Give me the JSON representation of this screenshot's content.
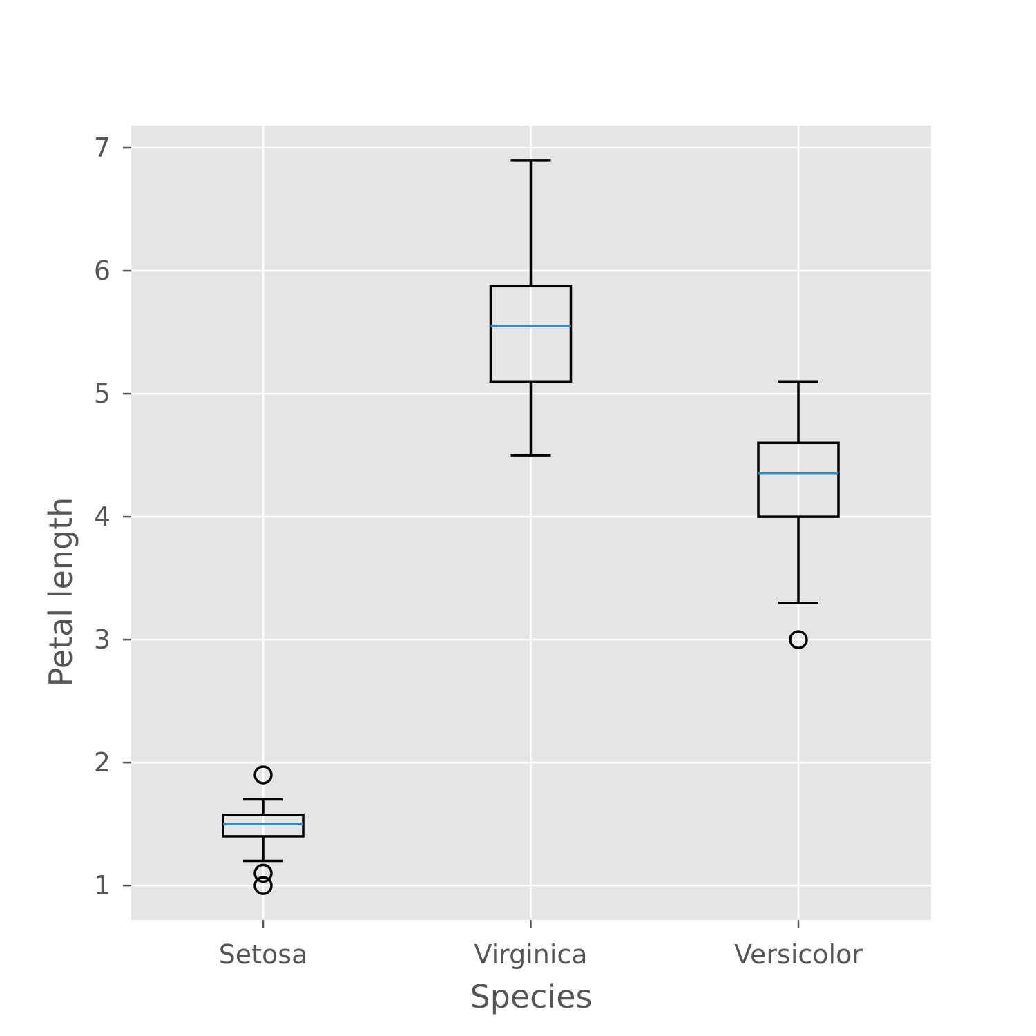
{
  "chart_data": {
    "type": "box",
    "title": "",
    "xlabel": "Species",
    "ylabel": "Petal length",
    "ylim": [
      0.72,
      7.18
    ],
    "yticks": [
      1,
      2,
      3,
      4,
      5,
      6,
      7
    ],
    "grid": true,
    "categories": [
      "Setosa",
      "Virginica",
      "Versicolor"
    ],
    "boxes": [
      {
        "category": "Setosa",
        "whisker_low": 1.2,
        "q1": 1.4,
        "median": 1.5,
        "q3": 1.575,
        "whisker_high": 1.7,
        "outliers": [
          1.0,
          1.1,
          1.9
        ]
      },
      {
        "category": "Virginica",
        "whisker_low": 4.5,
        "q1": 5.1,
        "median": 5.55,
        "q3": 5.875,
        "whisker_high": 6.9,
        "outliers": []
      },
      {
        "category": "Versicolor",
        "whisker_low": 3.3,
        "q1": 4.0,
        "median": 4.35,
        "q3": 4.6,
        "whisker_high": 5.1,
        "outliers": [
          3.0
        ]
      }
    ],
    "colors": {
      "background": "#e5e5e5",
      "grid": "#ffffff",
      "box": "#000000",
      "median": "#348abd",
      "text": "#555555"
    }
  }
}
